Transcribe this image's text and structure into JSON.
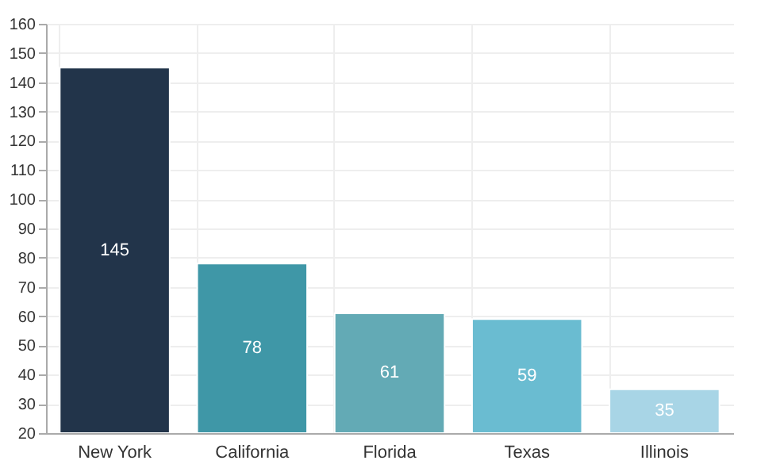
{
  "chart_data": {
    "type": "bar",
    "categories": [
      "New York",
      "California",
      "Florida",
      "Texas",
      "Illinois"
    ],
    "values": [
      145,
      78,
      61,
      59,
      35
    ],
    "colors": [
      "#22344a",
      "#3f97a7",
      "#63aab5",
      "#6abcd1",
      "#a8d5e6"
    ],
    "ylim": [
      20,
      160
    ],
    "yticks": [
      20,
      30,
      40,
      50,
      60,
      70,
      80,
      90,
      100,
      110,
      120,
      130,
      140,
      150,
      160
    ],
    "grid": true,
    "data_labels": true
  }
}
